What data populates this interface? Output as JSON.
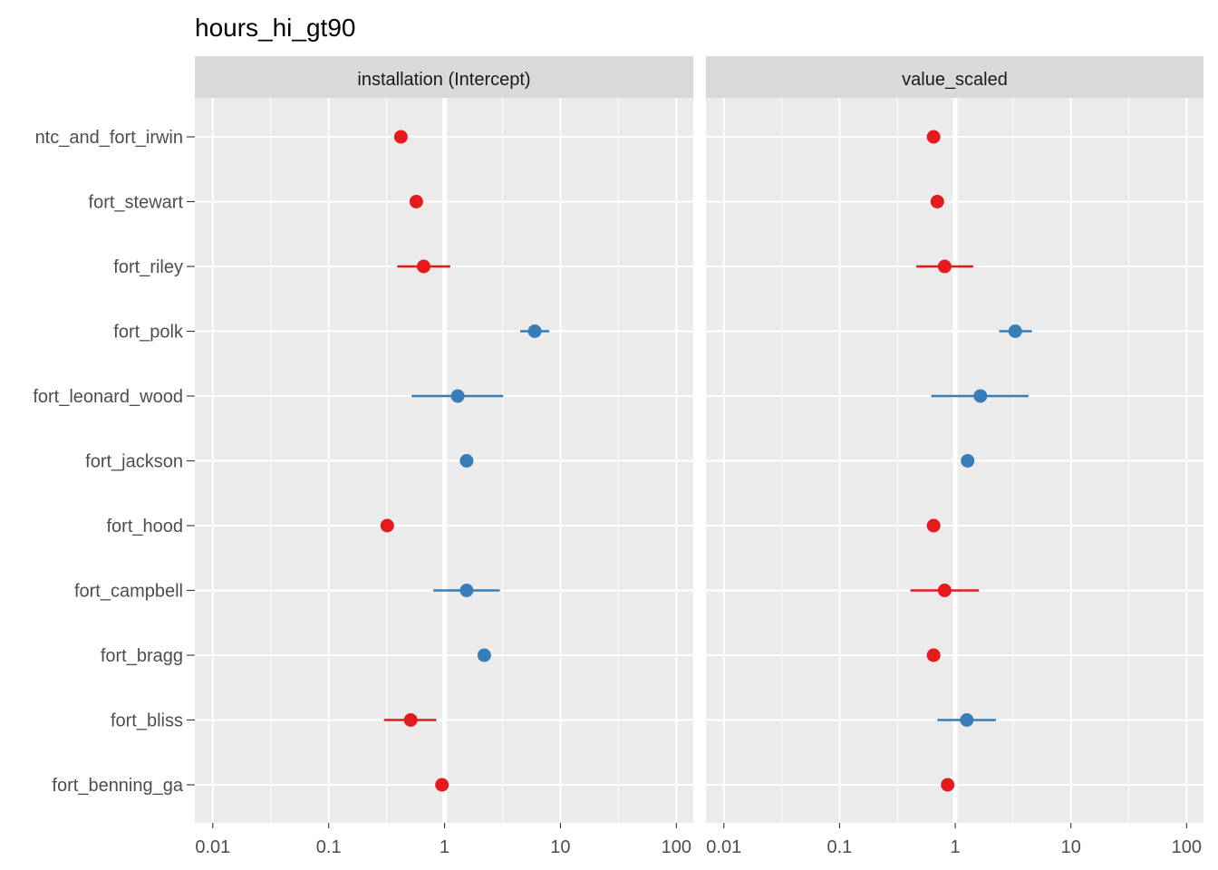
{
  "chart_data": {
    "type": "scatter",
    "title": "hours_hi_gt90",
    "x_scale": "log10",
    "xlim": [
      0.007,
      140
    ],
    "x_ticks": [
      0.01,
      0.1,
      1,
      10,
      100
    ],
    "x_tick_labels": [
      "0.01",
      "0.1",
      "1",
      "10",
      "100"
    ],
    "reference_line_x": 1,
    "grid": true,
    "legend": "none",
    "colors": {
      "above_one": "#377EB8",
      "below_one": "#E41A1C",
      "panel_bg": "#EBEBEB",
      "strip_bg": "#D9D9D9",
      "grid": "#FFFFFF"
    },
    "categories": [
      "ntc_and_fort_irwin",
      "fort_stewart",
      "fort_riley",
      "fort_polk",
      "fort_leonard_wood",
      "fort_jackson",
      "fort_hood",
      "fort_campbell",
      "fort_bragg",
      "fort_bliss",
      "fort_benning_ga"
    ],
    "panels": [
      {
        "strip_label": "installation (Intercept)",
        "points": [
          {
            "category": "ntc_and_fort_irwin",
            "estimate": 0.42,
            "lower": null,
            "upper": null
          },
          {
            "category": "fort_stewart",
            "estimate": 0.57,
            "lower": null,
            "upper": null
          },
          {
            "category": "fort_riley",
            "estimate": 0.66,
            "lower": 0.39,
            "upper": 1.12
          },
          {
            "category": "fort_polk",
            "estimate": 6.0,
            "lower": 4.5,
            "upper": 8.0
          },
          {
            "category": "fort_leonard_wood",
            "estimate": 1.3,
            "lower": 0.52,
            "upper": 3.2
          },
          {
            "category": "fort_jackson",
            "estimate": 1.55,
            "lower": null,
            "upper": null
          },
          {
            "category": "fort_hood",
            "estimate": 0.32,
            "lower": null,
            "upper": null
          },
          {
            "category": "fort_campbell",
            "estimate": 1.55,
            "lower": 0.8,
            "upper": 3.0
          },
          {
            "category": "fort_bragg",
            "estimate": 2.2,
            "lower": null,
            "upper": null
          },
          {
            "category": "fort_bliss",
            "estimate": 0.51,
            "lower": 0.3,
            "upper": 0.85
          },
          {
            "category": "fort_benning_ga",
            "estimate": 0.95,
            "lower": null,
            "upper": null
          }
        ]
      },
      {
        "strip_label": "value_scaled",
        "points": [
          {
            "category": "ntc_and_fort_irwin",
            "estimate": 0.65,
            "lower": 0.57,
            "upper": 0.74
          },
          {
            "category": "fort_stewart",
            "estimate": 0.7,
            "lower": null,
            "upper": null
          },
          {
            "category": "fort_riley",
            "estimate": 0.81,
            "lower": 0.46,
            "upper": 1.43
          },
          {
            "category": "fort_polk",
            "estimate": 3.3,
            "lower": 2.4,
            "upper": 4.6
          },
          {
            "category": "fort_leonard_wood",
            "estimate": 1.65,
            "lower": 0.62,
            "upper": 4.3
          },
          {
            "category": "fort_jackson",
            "estimate": 1.28,
            "lower": null,
            "upper": null
          },
          {
            "category": "fort_hood",
            "estimate": 0.65,
            "lower": null,
            "upper": null
          },
          {
            "category": "fort_campbell",
            "estimate": 0.81,
            "lower": 0.41,
            "upper": 1.6
          },
          {
            "category": "fort_bragg",
            "estimate": 0.65,
            "lower": null,
            "upper": null
          },
          {
            "category": "fort_bliss",
            "estimate": 1.26,
            "lower": 0.7,
            "upper": 2.25
          },
          {
            "category": "fort_benning_ga",
            "estimate": 0.86,
            "lower": null,
            "upper": null
          }
        ]
      }
    ]
  }
}
